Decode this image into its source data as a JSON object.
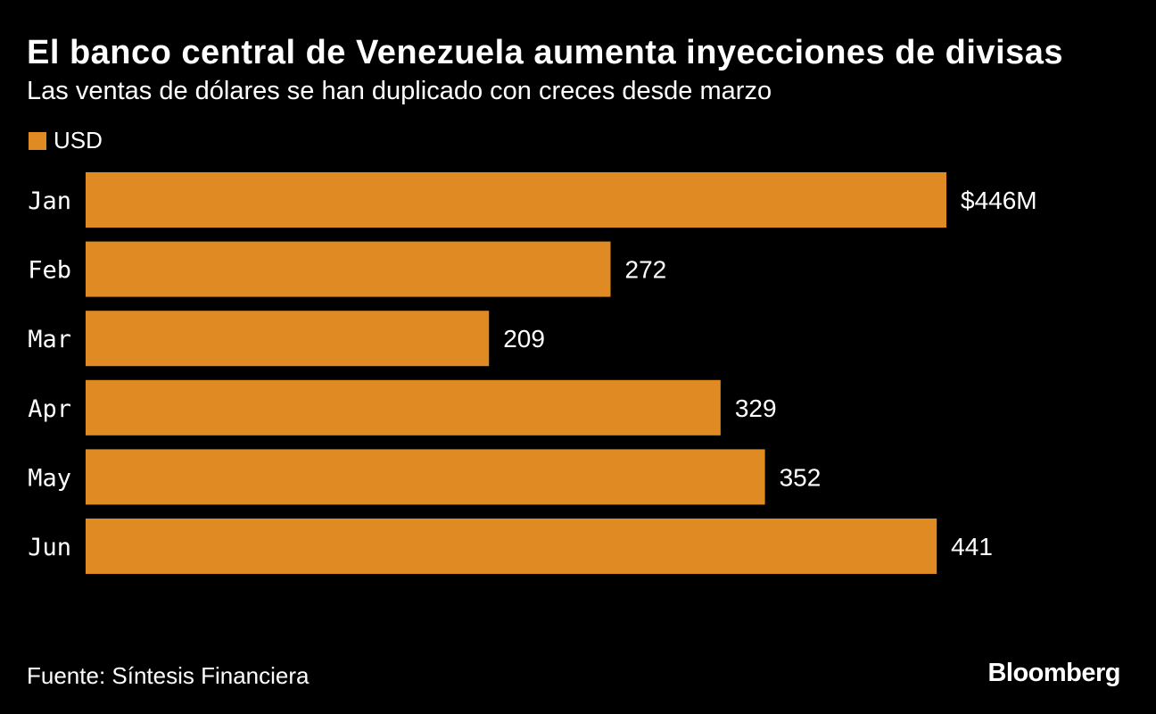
{
  "header": {
    "title": "El banco central de Venezuela aumenta inyecciones de divisas",
    "subtitle": "Las ventas de dólares se han duplicado con creces desde marzo"
  },
  "legend": {
    "label": "USD"
  },
  "footer": {
    "source": "Fuente: Síntesis Financiera",
    "brand": "Bloomberg"
  },
  "colors": {
    "background": "#000000",
    "bar": "#E08A24",
    "text": "#FFFFFF"
  },
  "chart_data": {
    "type": "bar",
    "orientation": "horizontal",
    "title": "El banco central de Venezuela aumenta inyecciones de divisas",
    "subtitle": "Las ventas de dólares se han duplicado con creces desde marzo",
    "categories": [
      "Jan",
      "Feb",
      "Mar",
      "Apr",
      "May",
      "Jun"
    ],
    "series": [
      {
        "name": "USD",
        "values": [
          446,
          272,
          209,
          329,
          352,
          441
        ],
        "labels": [
          "$446M",
          "272",
          "209",
          "329",
          "352",
          "441"
        ]
      }
    ],
    "xlim": [
      0,
      446
    ],
    "grid": false,
    "legend_position": "top-left",
    "xlabel": "",
    "ylabel": ""
  }
}
